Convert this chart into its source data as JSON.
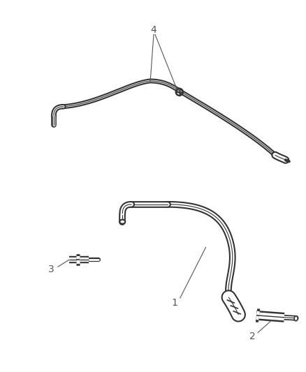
{
  "background_color": "#ffffff",
  "line_color": "#333333",
  "label_color": "#555555",
  "fig_width": 4.38,
  "fig_height": 5.33,
  "dpi": 100,
  "tube_lw": 3.5,
  "connector_lw": 8.0
}
